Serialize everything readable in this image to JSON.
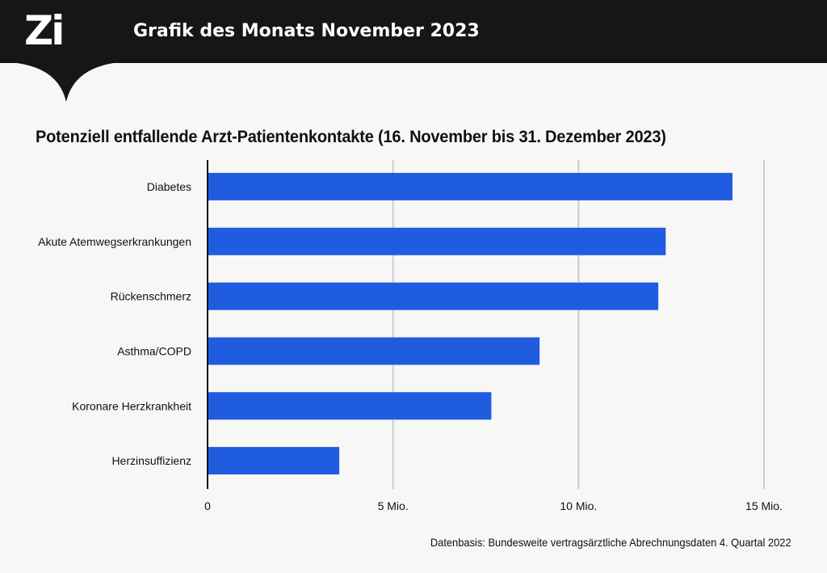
{
  "header": {
    "logo_text": "Zi",
    "title": "Grafik des Monats November 2023"
  },
  "source_note": "Datenbasis: Bundesweite vertragsärztliche Abrechnungsdaten 4. Quartal 2022",
  "colors": {
    "bar": "#1f5ce0",
    "header_bg": "#161616",
    "grid": "#c9cdd1",
    "background": "#f7f7f5"
  },
  "chart_data": {
    "type": "bar",
    "orientation": "horizontal",
    "title": "Potenziell entfallende Arzt-Patientenkontakte (16. November bis 31. Dezember 2023)",
    "categories": [
      "Diabetes",
      "Akute Atemwegserkrankungen",
      "Rückenschmerz",
      "Asthma/COPD",
      "Koronare Herzkrankheit",
      "Herzinsuffizienz"
    ],
    "values": [
      14.15,
      12.35,
      12.15,
      8.95,
      7.65,
      3.55
    ],
    "unit": "Mio.",
    "xlim": [
      0,
      15
    ],
    "ticks": [
      0,
      5,
      10,
      15
    ],
    "tick_labels": [
      "0",
      "5 Mio.",
      "10 Mio.",
      "15 Mio."
    ],
    "grid": true,
    "legend": "none"
  }
}
